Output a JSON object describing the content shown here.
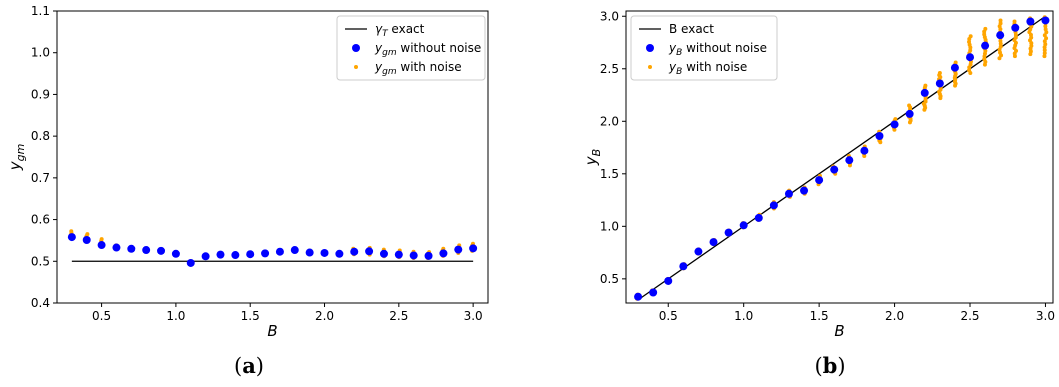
{
  "captions": {
    "a_open": "(",
    "a_letter": "a",
    "a_close": ")",
    "b_open": "(",
    "b_letter": "b",
    "b_close": ")"
  },
  "chart_data": [
    {
      "type": "scatter",
      "panel": "a",
      "xlabel": "B",
      "ylabel": "y_gm",
      "xlim": [
        0.2,
        3.1
      ],
      "ylim": [
        0.4,
        1.1
      ],
      "xticks": [
        0.5,
        1.0,
        1.5,
        2.0,
        2.5,
        3.0
      ],
      "xtick_labels": [
        "0.5",
        "1.0",
        "1.5",
        "2.0",
        "2.5",
        "3.0"
      ],
      "yticks": [
        0.4,
        0.5,
        0.6,
        0.7,
        0.8,
        0.9,
        1.0,
        1.1
      ],
      "ytick_labels": [
        "0.4",
        "0.5",
        "0.6",
        "0.7",
        "0.8",
        "0.9",
        "1.0",
        "1.1"
      ],
      "grid": false,
      "legend_position": "top-right",
      "legend": [
        {
          "sym": "γ",
          "sub": "T",
          "rest": " exact"
        },
        {
          "sym": "y",
          "sub": "gm",
          "rest": " without noise"
        },
        {
          "sym": "y",
          "sub": "gm",
          "rest": " with noise"
        }
      ],
      "colors": {
        "exact": "#000000",
        "without_noise": "#0000ff",
        "with_noise": "#ffa500"
      },
      "exact_line": {
        "x": [
          0.3,
          3.0
        ],
        "y": [
          0.5,
          0.5
        ]
      },
      "x": [
        0.3,
        0.4,
        0.5,
        0.6,
        0.7,
        0.8,
        0.9,
        1.0,
        1.1,
        1.2,
        1.3,
        1.4,
        1.5,
        1.6,
        1.7,
        1.8,
        1.9,
        2.0,
        2.1,
        2.2,
        2.3,
        2.4,
        2.5,
        2.6,
        2.7,
        2.8,
        2.9,
        3.0
      ],
      "without_noise": [
        0.558,
        0.551,
        0.539,
        0.533,
        0.53,
        0.527,
        0.525,
        0.518,
        0.496,
        0.512,
        0.516,
        0.515,
        0.517,
        0.519,
        0.523,
        0.527,
        0.521,
        0.52,
        0.518,
        0.523,
        0.524,
        0.518,
        0.516,
        0.514,
        0.513,
        0.519,
        0.528,
        0.531
      ],
      "with_noise_min": [
        0.555,
        0.548,
        0.536,
        0.531,
        0.528,
        0.525,
        0.523,
        0.516,
        0.497,
        0.51,
        0.514,
        0.513,
        0.515,
        0.517,
        0.521,
        0.525,
        0.519,
        0.518,
        0.516,
        0.517,
        0.516,
        0.512,
        0.51,
        0.508,
        0.508,
        0.513,
        0.52,
        0.525
      ],
      "with_noise_max": [
        0.572,
        0.565,
        0.553,
        0.538,
        0.533,
        0.53,
        0.528,
        0.521,
        0.5,
        0.515,
        0.519,
        0.518,
        0.52,
        0.522,
        0.526,
        0.53,
        0.524,
        0.523,
        0.521,
        0.53,
        0.532,
        0.528,
        0.526,
        0.523,
        0.522,
        0.53,
        0.538,
        0.542
      ]
    },
    {
      "type": "scatter",
      "panel": "b",
      "xlabel": "B",
      "ylabel": "y_B",
      "xlim": [
        0.22,
        3.05
      ],
      "ylim": [
        0.27,
        3.05
      ],
      "xticks": [
        0.5,
        1.0,
        1.5,
        2.0,
        2.5,
        3.0
      ],
      "xtick_labels": [
        "0.5",
        "1.0",
        "1.5",
        "2.0",
        "2.5",
        "3.0"
      ],
      "yticks": [
        0.5,
        1.0,
        1.5,
        2.0,
        2.5,
        3.0
      ],
      "ytick_labels": [
        "0.5",
        "1.0",
        "1.5",
        "2.0",
        "2.5",
        "3.0"
      ],
      "grid": false,
      "legend_position": "top-left",
      "legend": [
        {
          "sym": "B",
          "sub": "",
          "rest": " exact",
          "plain": true
        },
        {
          "sym": "y",
          "sub": "B",
          "rest": " without noise"
        },
        {
          "sym": "y",
          "sub": "B",
          "rest": " with noise"
        }
      ],
      "colors": {
        "exact": "#000000",
        "without_noise": "#0000ff",
        "with_noise": "#ffa500"
      },
      "exact_line": {
        "x": [
          0.3,
          3.0
        ],
        "y": [
          0.3,
          3.0
        ]
      },
      "x": [
        0.3,
        0.4,
        0.5,
        0.6,
        0.7,
        0.8,
        0.9,
        1.0,
        1.1,
        1.2,
        1.3,
        1.4,
        1.5,
        1.6,
        1.7,
        1.8,
        1.9,
        2.0,
        2.1,
        2.2,
        2.3,
        2.4,
        2.5,
        2.6,
        2.7,
        2.8,
        2.9,
        3.0
      ],
      "without_noise": [
        0.33,
        0.37,
        0.48,
        0.62,
        0.76,
        0.85,
        0.94,
        1.01,
        1.08,
        1.2,
        1.31,
        1.34,
        1.44,
        1.54,
        1.63,
        1.72,
        1.86,
        1.97,
        2.07,
        2.27,
        2.36,
        2.51,
        2.61,
        2.72,
        2.82,
        2.89,
        2.95,
        2.96
      ],
      "with_noise_min": [
        0.31,
        0.36,
        0.47,
        0.6,
        0.74,
        0.83,
        0.92,
        0.99,
        1.06,
        1.17,
        1.28,
        1.31,
        1.4,
        1.5,
        1.58,
        1.67,
        1.8,
        1.92,
        1.99,
        2.11,
        2.22,
        2.34,
        2.46,
        2.54,
        2.6,
        2.62,
        2.64,
        2.62
      ],
      "with_noise_max": [
        0.35,
        0.39,
        0.5,
        0.64,
        0.78,
        0.87,
        0.96,
        1.03,
        1.11,
        1.23,
        1.34,
        1.37,
        1.48,
        1.57,
        1.67,
        1.76,
        1.9,
        2.02,
        2.15,
        2.34,
        2.46,
        2.56,
        2.81,
        2.88,
        2.96,
        2.95,
        2.98,
        2.99
      ]
    }
  ]
}
